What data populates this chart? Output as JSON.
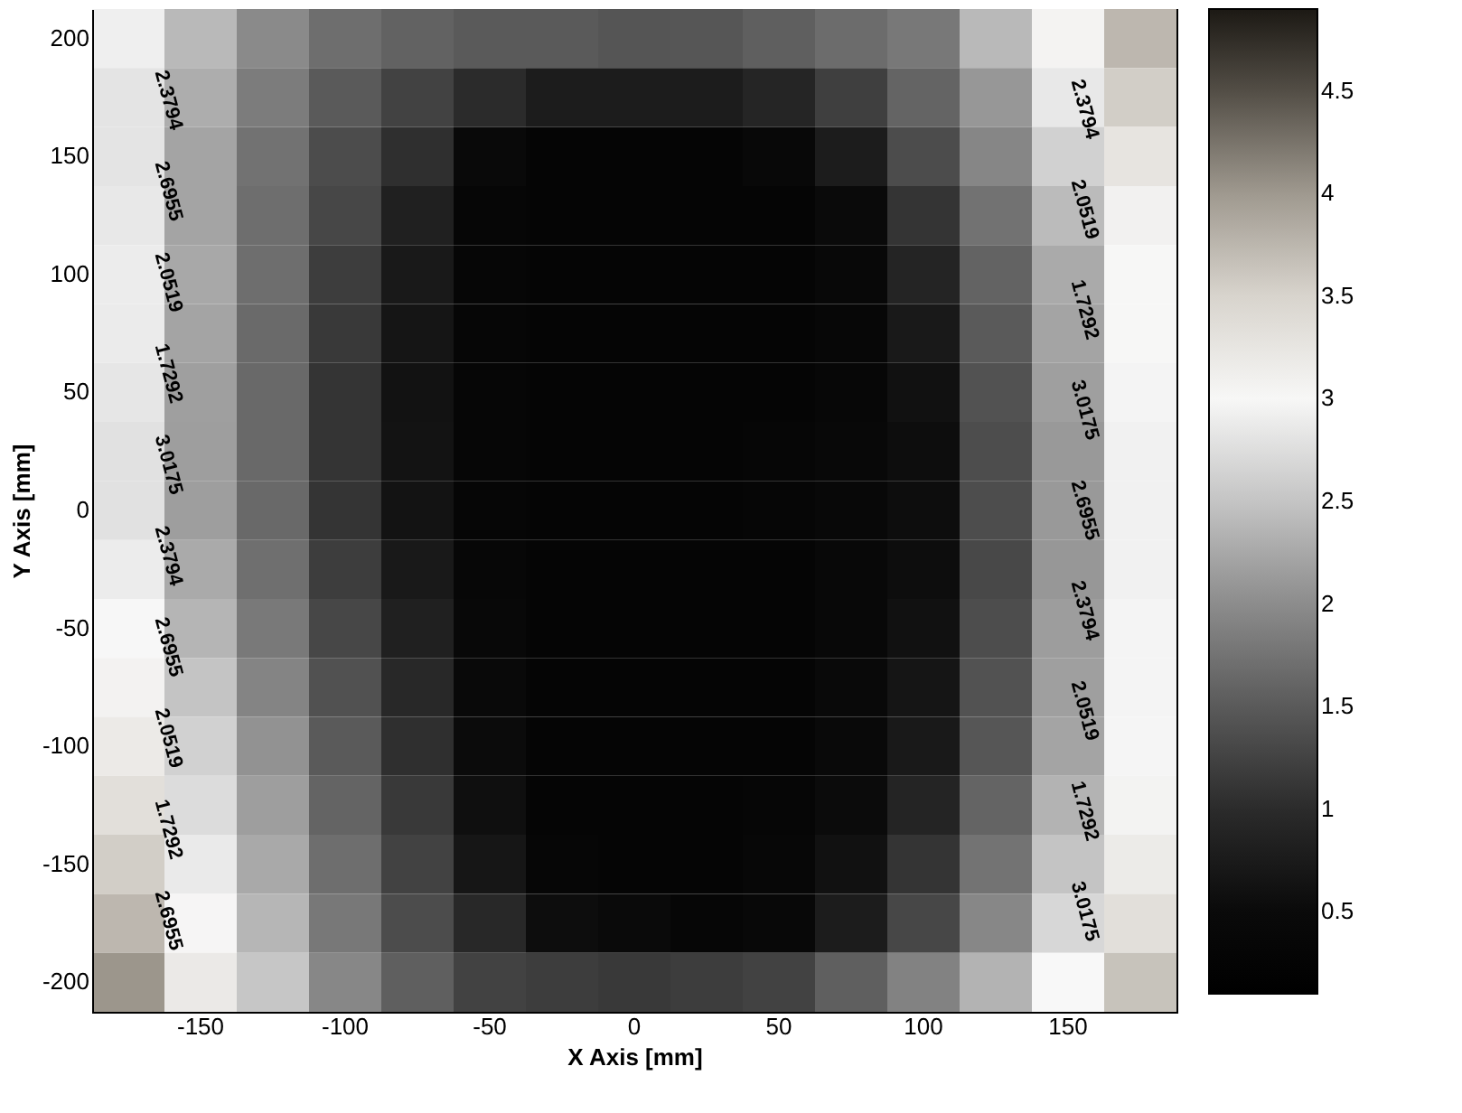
{
  "chart_data": {
    "type": "heatmap",
    "xlabel": "X Axis [mm]",
    "ylabel": "Y Axis [mm]",
    "categories": [
      null,
      "-150",
      null,
      "-100",
      null,
      "-50",
      null,
      "0",
      null,
      "50",
      null,
      "100",
      null,
      "150",
      null
    ],
    "y_categories": [
      "200",
      null,
      "150",
      null,
      "100",
      null,
      "50",
      null,
      "0",
      null,
      "-50",
      null,
      "-100",
      null,
      "-150",
      null,
      "-200"
    ],
    "cells": [
      [
        2.9,
        2.4,
        1.98,
        1.7,
        1.58,
        1.5,
        1.5,
        1.45,
        1.46,
        1.55,
        1.68,
        1.8,
        2.4,
        3.05,
        3.75
      ],
      [
        2.8,
        2.3,
        1.84,
        1.5,
        1.25,
        1.0,
        0.8,
        0.8,
        0.8,
        0.92,
        1.22,
        1.6,
        2.1,
        2.83,
        3.55
      ],
      [
        2.8,
        2.22,
        1.74,
        1.35,
        1.05,
        0.45,
        0.3,
        0.3,
        0.3,
        0.4,
        0.8,
        1.35,
        1.94,
        2.62,
        3.28
      ],
      [
        2.83,
        2.22,
        1.7,
        1.3,
        0.85,
        0.35,
        0.3,
        0.3,
        0.3,
        0.3,
        0.52,
        1.1,
        1.74,
        2.42,
        3.08
      ],
      [
        2.87,
        2.25,
        1.7,
        1.2,
        0.75,
        0.33,
        0.3,
        0.3,
        0.3,
        0.3,
        0.42,
        0.9,
        1.59,
        2.27,
        3.0
      ],
      [
        2.86,
        2.22,
        1.66,
        1.15,
        0.7,
        0.33,
        0.3,
        0.3,
        0.3,
        0.3,
        0.38,
        0.75,
        1.5,
        2.22,
        3.0
      ],
      [
        2.81,
        2.17,
        1.65,
        1.1,
        0.66,
        0.33,
        0.3,
        0.3,
        0.3,
        0.3,
        0.38,
        0.65,
        1.41,
        2.17,
        2.94
      ],
      [
        2.77,
        2.16,
        1.65,
        1.1,
        0.67,
        0.35,
        0.3,
        0.3,
        0.3,
        0.33,
        0.43,
        0.6,
        1.36,
        2.12,
        2.92
      ],
      [
        2.77,
        2.16,
        1.65,
        1.1,
        0.67,
        0.35,
        0.3,
        0.3,
        0.3,
        0.33,
        0.43,
        0.6,
        1.36,
        2.12,
        2.92
      ],
      [
        2.87,
        2.27,
        1.71,
        1.2,
        0.76,
        0.38,
        0.3,
        0.3,
        0.3,
        0.3,
        0.42,
        0.6,
        1.31,
        2.1,
        2.92
      ],
      [
        2.97,
        2.37,
        1.81,
        1.3,
        0.85,
        0.4,
        0.3,
        0.3,
        0.3,
        0.3,
        0.42,
        0.65,
        1.36,
        2.15,
        2.94
      ],
      [
        3.07,
        2.5,
        1.92,
        1.4,
        0.95,
        0.48,
        0.3,
        0.3,
        0.3,
        0.3,
        0.45,
        0.7,
        1.41,
        2.17,
        2.94
      ],
      [
        3.19,
        2.62,
        2.06,
        1.5,
        1.05,
        0.55,
        0.3,
        0.3,
        0.3,
        0.3,
        0.45,
        0.75,
        1.46,
        2.22,
        2.95
      ],
      [
        3.36,
        2.72,
        2.16,
        1.6,
        1.15,
        0.62,
        0.3,
        0.3,
        0.3,
        0.35,
        0.55,
        0.9,
        1.6,
        2.35,
        3.06
      ],
      [
        3.55,
        2.85,
        2.26,
        1.7,
        1.25,
        0.72,
        0.35,
        0.3,
        0.3,
        0.38,
        0.65,
        1.1,
        1.75,
        2.5,
        3.18
      ],
      [
        3.75,
        3.02,
        2.38,
        1.8,
        1.35,
        0.95,
        0.6,
        0.5,
        0.35,
        0.4,
        0.8,
        1.3,
        1.95,
        2.68,
        3.36
      ],
      [
        4.02,
        3.2,
        2.52,
        1.95,
        1.55,
        1.25,
        1.2,
        1.15,
        1.2,
        1.25,
        1.55,
        1.9,
        2.35,
        2.98,
        3.65
      ]
    ],
    "clim": [
      0.1,
      4.9
    ],
    "cticks": [
      0.5,
      1,
      1.5,
      2,
      2.5,
      3,
      3.5,
      4,
      4.5
    ],
    "annotations": [
      "2.3794",
      "2.6955",
      "2.0519",
      "1.7292",
      "3.0175",
      "2.3794",
      "2.6955",
      "2.0519",
      "1.7292",
      "2.6955",
      "2.3794",
      "2.0519",
      "1.7292",
      "3.0175",
      "2.6955",
      "2.3794",
      "2.0519",
      "1.7292",
      "3.0175"
    ]
  }
}
